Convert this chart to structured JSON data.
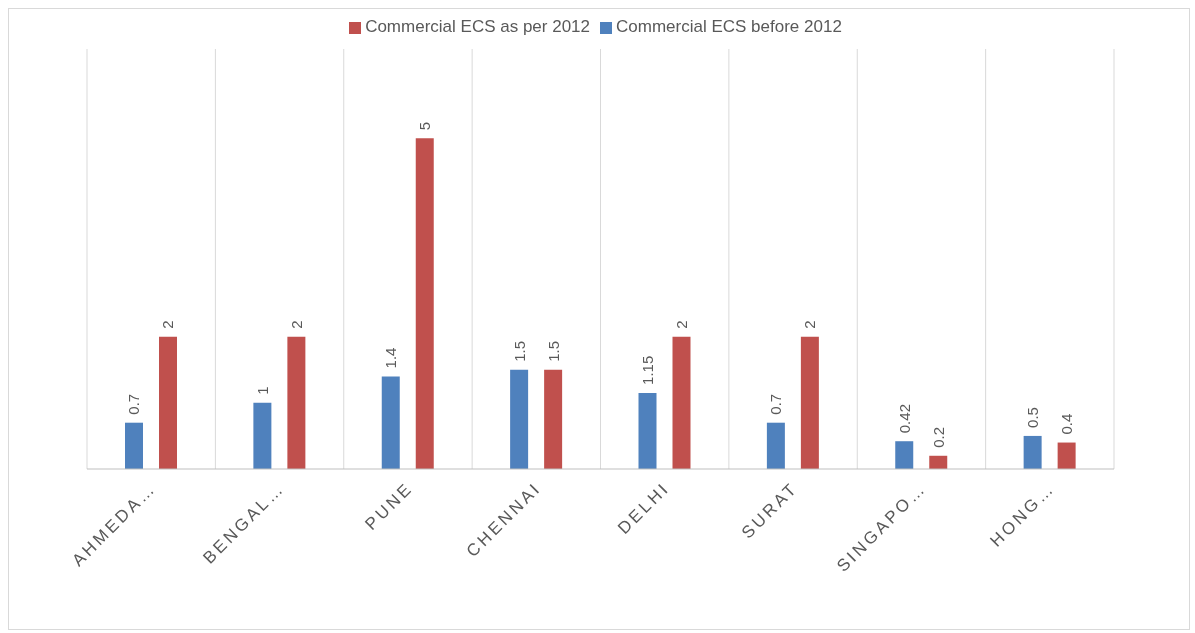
{
  "chart_data": {
    "type": "bar",
    "categories": [
      "AHMEDA…",
      "BENGAL…",
      "PUNE",
      "CHENNAI",
      "DELHI",
      "SURAT",
      "SINGAPO…",
      "HONG…"
    ],
    "series": [
      {
        "name": "Commercial ECS before 2012",
        "color": "#4f81bd",
        "values": [
          0.7,
          1,
          1.4,
          1.5,
          1.15,
          0.7,
          0.42,
          0.5
        ]
      },
      {
        "name": "Commercial ECS as per 2012",
        "color": "#c0504d",
        "values": [
          2,
          2,
          5,
          1.5,
          2,
          2,
          0.2,
          0.4
        ]
      }
    ],
    "data_labels": true,
    "grid": "x",
    "legend": "top"
  }
}
